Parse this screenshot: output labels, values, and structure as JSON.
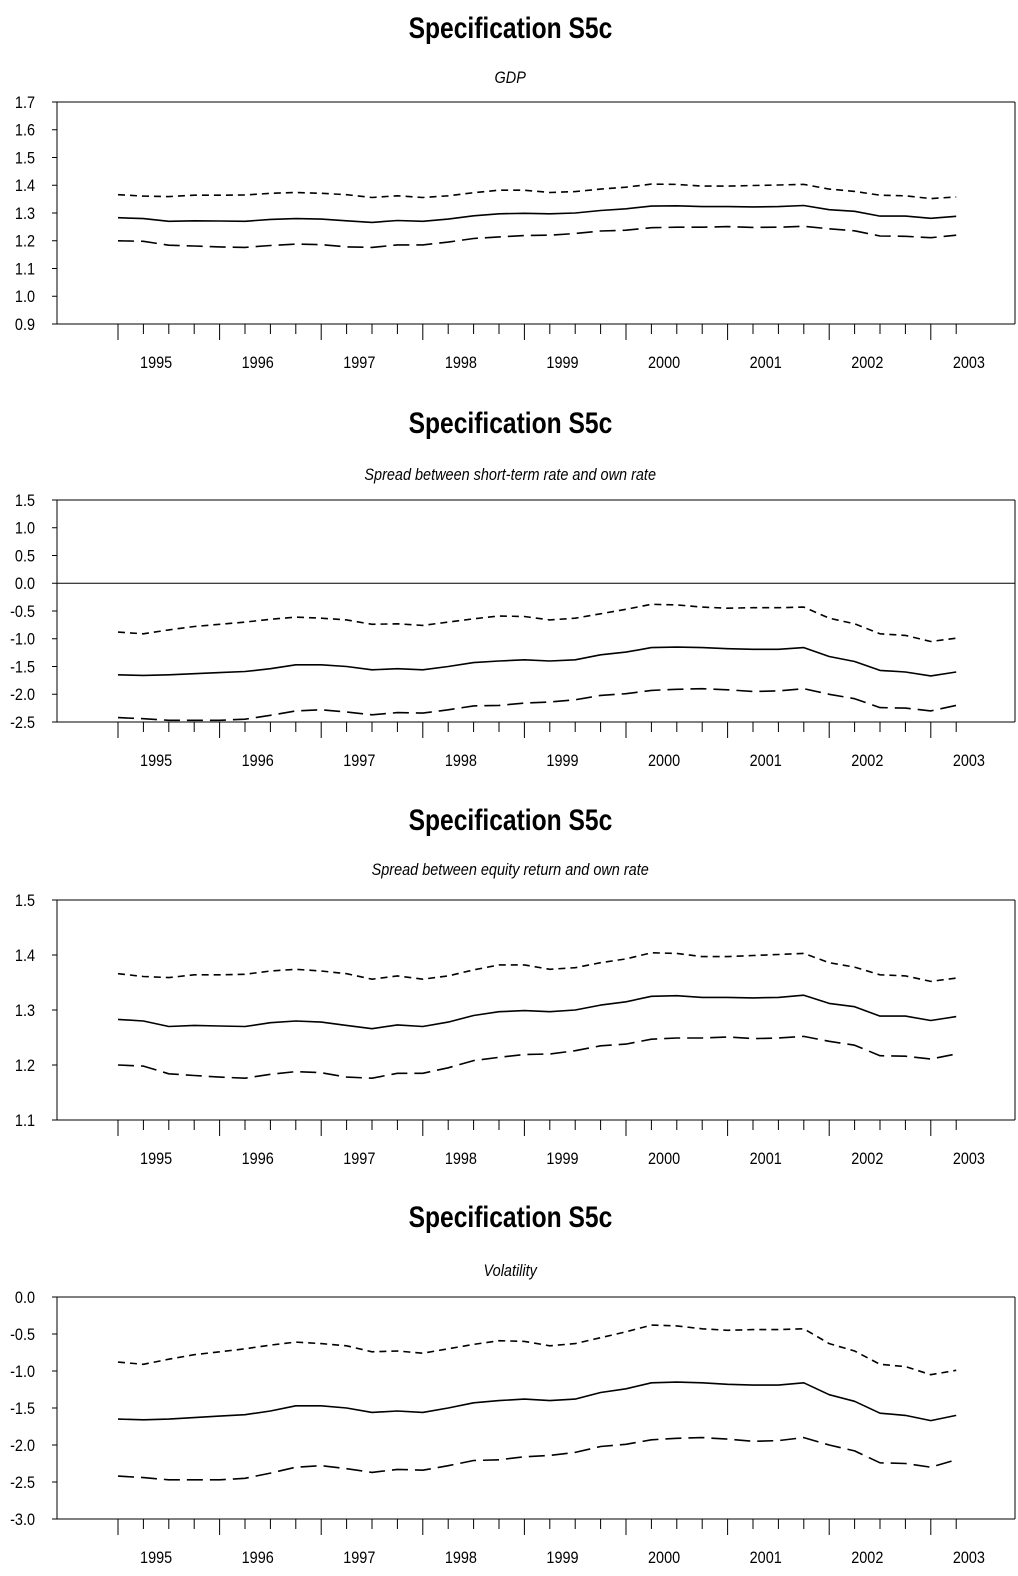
{
  "chart_data": [
    {
      "type": "line",
      "title": "Specification S5c",
      "subtitle": "GDP",
      "xlabel": "",
      "ylabel": "",
      "ylim": [
        0.9,
        1.7
      ],
      "yticks": [
        "1.7",
        "1.6",
        "1.5",
        "1.4",
        "1.3",
        "1.2",
        "1.1",
        "1.0",
        "0.9"
      ],
      "xticklabels": [
        "1995",
        "1996",
        "1997",
        "1998",
        "1999",
        "2000",
        "2001",
        "2002",
        "2003"
      ],
      "zero_line": false,
      "grid": false,
      "series": [
        {
          "style": "solid",
          "values": [
            1.283,
            1.28,
            1.27,
            1.272,
            1.271,
            1.27,
            1.277,
            1.28,
            1.278,
            1.272,
            1.266,
            1.273,
            1.27,
            1.278,
            1.29,
            1.297,
            1.299,
            1.297,
            1.3,
            1.309,
            1.315,
            1.325,
            1.326,
            1.323,
            1.323,
            1.322,
            1.323,
            1.327,
            1.312,
            1.306,
            1.289,
            1.289,
            1.281,
            1.288
          ]
        },
        {
          "style": "dashed-short",
          "values": [
            1.366,
            1.361,
            1.359,
            1.364,
            1.364,
            1.365,
            1.371,
            1.374,
            1.371,
            1.366,
            1.356,
            1.362,
            1.356,
            1.362,
            1.373,
            1.382,
            1.382,
            1.374,
            1.377,
            1.386,
            1.393,
            1.404,
            1.403,
            1.397,
            1.397,
            1.399,
            1.401,
            1.403,
            1.386,
            1.378,
            1.364,
            1.362,
            1.352,
            1.358
          ]
        },
        {
          "style": "dashed-long",
          "values": [
            1.2,
            1.198,
            1.184,
            1.181,
            1.178,
            1.176,
            1.183,
            1.188,
            1.186,
            1.178,
            1.176,
            1.185,
            1.185,
            1.195,
            1.208,
            1.214,
            1.219,
            1.22,
            1.226,
            1.235,
            1.238,
            1.247,
            1.249,
            1.249,
            1.251,
            1.248,
            1.249,
            1.252,
            1.243,
            1.236,
            1.217,
            1.216,
            1.211,
            1.22
          ]
        }
      ]
    },
    {
      "type": "line",
      "title": "Specification S5c",
      "subtitle": "Spread between short-term rate and own rate",
      "xlabel": "",
      "ylabel": "",
      "ylim": [
        -2.5,
        1.5
      ],
      "yticks": [
        "1.5",
        "1.0",
        "0.5",
        "0.0",
        "-0.5",
        "-1.0",
        "-1.5",
        "-2.0",
        "-2.5"
      ],
      "xticklabels": [
        "1995",
        "1996",
        "1997",
        "1998",
        "1999",
        "2000",
        "2001",
        "2002",
        "2003"
      ],
      "zero_line": true,
      "grid": false,
      "series": [
        {
          "style": "solid",
          "values": [
            -1.65,
            -1.66,
            -1.65,
            -1.63,
            -1.61,
            -1.59,
            -1.54,
            -1.47,
            -1.47,
            -1.5,
            -1.56,
            -1.54,
            -1.56,
            -1.5,
            -1.43,
            -1.4,
            -1.38,
            -1.4,
            -1.38,
            -1.29,
            -1.24,
            -1.16,
            -1.15,
            -1.16,
            -1.18,
            -1.19,
            -1.19,
            -1.16,
            -1.32,
            -1.41,
            -1.57,
            -1.6,
            -1.67,
            -1.6
          ]
        },
        {
          "style": "dashed-short",
          "values": [
            -0.88,
            -0.91,
            -0.84,
            -0.78,
            -0.74,
            -0.7,
            -0.65,
            -0.61,
            -0.63,
            -0.66,
            -0.74,
            -0.73,
            -0.76,
            -0.7,
            -0.64,
            -0.59,
            -0.6,
            -0.66,
            -0.63,
            -0.55,
            -0.47,
            -0.38,
            -0.39,
            -0.43,
            -0.45,
            -0.44,
            -0.44,
            -0.43,
            -0.63,
            -0.73,
            -0.91,
            -0.94,
            -1.05,
            -0.99
          ]
        },
        {
          "style": "dashed-long",
          "values": [
            -2.42,
            -2.44,
            -2.47,
            -2.47,
            -2.47,
            -2.45,
            -2.38,
            -2.3,
            -2.28,
            -2.32,
            -2.37,
            -2.33,
            -2.34,
            -2.28,
            -2.21,
            -2.2,
            -2.16,
            -2.14,
            -2.1,
            -2.02,
            -1.99,
            -1.93,
            -1.91,
            -1.9,
            -1.92,
            -1.95,
            -1.94,
            -1.9,
            -2.0,
            -2.08,
            -2.24,
            -2.25,
            -2.3,
            -2.2
          ]
        }
      ]
    },
    {
      "type": "line",
      "title": "Specification S5c",
      "subtitle": "Spread between equity return and own rate",
      "xlabel": "",
      "ylabel": "",
      "ylim": [
        1.1,
        1.5
      ],
      "yticks": [
        "1.5",
        "1.4",
        "1.3",
        "1.2",
        "1.1"
      ],
      "xticklabels": [
        "1995",
        "1996",
        "1997",
        "1998",
        "1999",
        "2000",
        "2001",
        "2002",
        "2003"
      ],
      "zero_line": false,
      "grid": false,
      "series": [
        {
          "style": "solid",
          "values": [
            1.283,
            1.28,
            1.27,
            1.272,
            1.271,
            1.27,
            1.277,
            1.28,
            1.278,
            1.272,
            1.266,
            1.273,
            1.27,
            1.278,
            1.29,
            1.297,
            1.299,
            1.297,
            1.3,
            1.309,
            1.315,
            1.325,
            1.326,
            1.323,
            1.323,
            1.322,
            1.323,
            1.327,
            1.312,
            1.306,
            1.289,
            1.289,
            1.281,
            1.288
          ]
        },
        {
          "style": "dashed-short",
          "values": [
            1.366,
            1.361,
            1.359,
            1.364,
            1.364,
            1.365,
            1.371,
            1.374,
            1.371,
            1.366,
            1.356,
            1.362,
            1.356,
            1.362,
            1.373,
            1.382,
            1.382,
            1.374,
            1.377,
            1.386,
            1.393,
            1.404,
            1.403,
            1.397,
            1.397,
            1.399,
            1.401,
            1.403,
            1.386,
            1.378,
            1.364,
            1.362,
            1.352,
            1.358
          ]
        },
        {
          "style": "dashed-long",
          "values": [
            1.2,
            1.198,
            1.184,
            1.181,
            1.178,
            1.176,
            1.183,
            1.188,
            1.186,
            1.178,
            1.176,
            1.185,
            1.185,
            1.195,
            1.208,
            1.214,
            1.219,
            1.22,
            1.226,
            1.235,
            1.238,
            1.247,
            1.249,
            1.249,
            1.251,
            1.248,
            1.249,
            1.252,
            1.243,
            1.236,
            1.217,
            1.216,
            1.211,
            1.22
          ]
        }
      ]
    },
    {
      "type": "line",
      "title": "Specification S5c",
      "subtitle": "Volatility",
      "xlabel": "",
      "ylabel": "",
      "ylim": [
        -3.0,
        0.0
      ],
      "yticks": [
        "0.0",
        "-0.5",
        "-1.0",
        "-1.5",
        "-2.0",
        "-2.5",
        "-3.0"
      ],
      "xticklabels": [
        "1995",
        "1996",
        "1997",
        "1998",
        "1999",
        "2000",
        "2001",
        "2002",
        "2003"
      ],
      "zero_line": false,
      "grid": false,
      "series": [
        {
          "style": "solid",
          "values": [
            -1.65,
            -1.66,
            -1.65,
            -1.63,
            -1.61,
            -1.59,
            -1.54,
            -1.47,
            -1.47,
            -1.5,
            -1.56,
            -1.54,
            -1.56,
            -1.5,
            -1.43,
            -1.4,
            -1.38,
            -1.4,
            -1.38,
            -1.29,
            -1.24,
            -1.16,
            -1.15,
            -1.16,
            -1.18,
            -1.19,
            -1.19,
            -1.16,
            -1.32,
            -1.41,
            -1.57,
            -1.6,
            -1.67,
            -1.6
          ]
        },
        {
          "style": "dashed-short",
          "values": [
            -0.88,
            -0.91,
            -0.84,
            -0.78,
            -0.74,
            -0.7,
            -0.65,
            -0.61,
            -0.63,
            -0.66,
            -0.74,
            -0.73,
            -0.76,
            -0.7,
            -0.64,
            -0.59,
            -0.6,
            -0.66,
            -0.63,
            -0.55,
            -0.47,
            -0.38,
            -0.39,
            -0.43,
            -0.45,
            -0.44,
            -0.44,
            -0.43,
            -0.63,
            -0.73,
            -0.91,
            -0.94,
            -1.05,
            -0.99
          ]
        },
        {
          "style": "dashed-long",
          "values": [
            -2.42,
            -2.44,
            -2.47,
            -2.47,
            -2.47,
            -2.45,
            -2.38,
            -2.3,
            -2.28,
            -2.32,
            -2.37,
            -2.33,
            -2.34,
            -2.28,
            -2.21,
            -2.2,
            -2.16,
            -2.14,
            -2.1,
            -2.02,
            -1.99,
            -1.93,
            -1.91,
            -1.9,
            -1.92,
            -1.95,
            -1.94,
            -1.9,
            -2.0,
            -2.08,
            -2.24,
            -2.25,
            -2.3,
            -2.2
          ]
        }
      ]
    }
  ]
}
